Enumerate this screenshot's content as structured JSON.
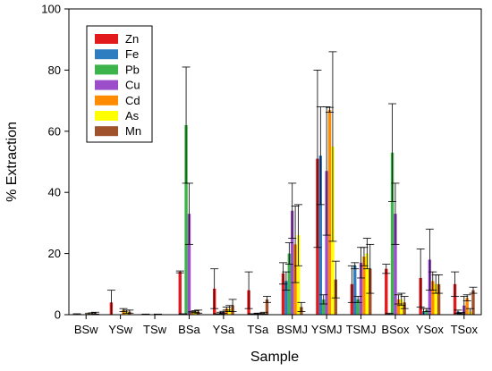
{
  "chart_data": {
    "type": "bar",
    "title": "",
    "xlabel": "Sample",
    "ylabel": "% Extraction",
    "ylim": [
      0,
      100
    ],
    "yticks": [
      0,
      20,
      40,
      60,
      80,
      100
    ],
    "grid": false,
    "legend_position": "top-left",
    "categories": [
      "BSw",
      "YSw",
      "TSw",
      "BSa",
      "YSa",
      "TSa",
      "BSMJ",
      "YSMJ",
      "TSMJ",
      "BSox",
      "YSox",
      "TSox"
    ],
    "series": [
      {
        "name": "Zn",
        "color": "#e31a1c",
        "values": [
          0.1,
          4,
          0.1,
          14,
          8.5,
          8,
          13.5,
          51,
          10,
          15,
          12,
          10
        ],
        "errors": [
          0.2,
          4,
          0.1,
          0.3,
          6.5,
          6,
          3.5,
          29,
          6,
          1.5,
          9.5,
          4
        ]
      },
      {
        "name": "Fe",
        "color": "#2f7dc1",
        "values": [
          0,
          0,
          0,
          0.2,
          0.2,
          0.2,
          11,
          52,
          16,
          0.3,
          1,
          1
        ],
        "errors": [
          0,
          0,
          0,
          0.1,
          0.1,
          0.1,
          3,
          16,
          1,
          0.2,
          1,
          0.5
        ]
      },
      {
        "name": "Pb",
        "color": "#3cb44b",
        "values": [
          0,
          0,
          0,
          62,
          0.5,
          0.2,
          20,
          5,
          5,
          53,
          1.5,
          0.5
        ],
        "errors": [
          0,
          0,
          0,
          19,
          0.3,
          0.1,
          3.5,
          1.5,
          1,
          16,
          0.5,
          0.2
        ]
      },
      {
        "name": "Cu",
        "color": "#9b4dca",
        "values": [
          0,
          0,
          0,
          33,
          0.8,
          0.3,
          34,
          47,
          17,
          33,
          18,
          3
        ],
        "errors": [
          0,
          0,
          0,
          10,
          0.3,
          0.2,
          9,
          21,
          5,
          10,
          10,
          3
        ]
      },
      {
        "name": "Cd",
        "color": "#ff8c00",
        "values": [
          0.3,
          1.5,
          0.1,
          0.8,
          2,
          0.3,
          23,
          67,
          19,
          5,
          11,
          5.5
        ],
        "errors": [
          0.2,
          0.5,
          0.1,
          0.2,
          0.5,
          0.2,
          12.5,
          0.8,
          3,
          1.5,
          3,
          1
        ]
      },
      {
        "name": "As",
        "color": "#ffff00",
        "values": [
          0.3,
          1,
          0,
          1,
          2,
          0.5,
          26,
          55,
          20,
          5,
          10,
          1
        ],
        "errors": [
          0.3,
          0.5,
          0,
          0.3,
          1,
          0.3,
          10,
          31,
          5,
          2,
          3,
          1
        ]
      },
      {
        "name": "Mn",
        "color": "#a0522d",
        "values": [
          0.5,
          1,
          0,
          1,
          3,
          5,
          2.5,
          11.5,
          15,
          4,
          10,
          8
        ],
        "errors": [
          0.3,
          0.5,
          0,
          0.5,
          2,
          1,
          1.5,
          6,
          8,
          2,
          3,
          1
        ]
      }
    ]
  }
}
